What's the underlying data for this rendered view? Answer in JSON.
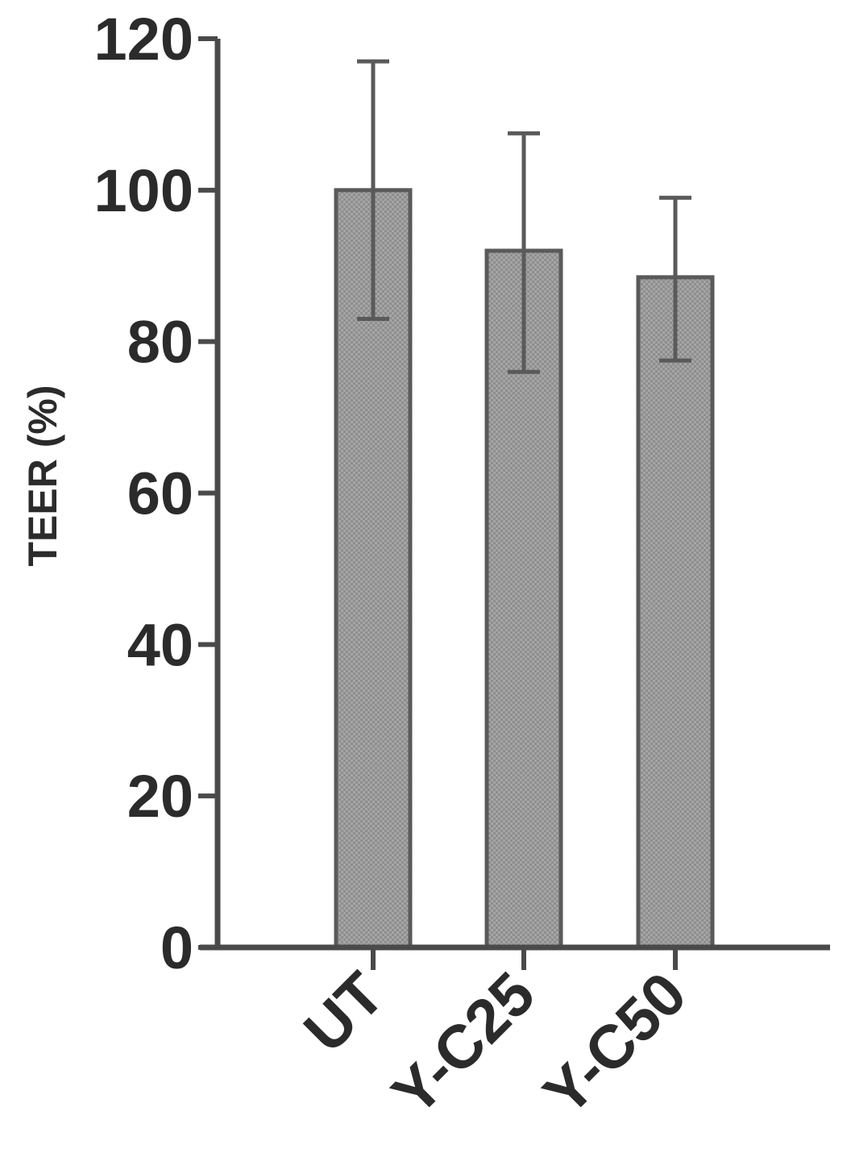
{
  "chart_data": {
    "type": "bar",
    "categories": [
      "UT",
      "Y-C25",
      "Y-C50"
    ],
    "values": [
      100,
      92,
      88.5
    ],
    "error_upper": [
      117,
      107.5,
      99
    ],
    "error_lower": [
      83,
      76,
      77.5
    ],
    "ylabel": "TEER (%)",
    "xlabel": "",
    "ylim": [
      0,
      120
    ],
    "yticks": [
      0,
      20,
      40,
      60,
      80,
      100,
      120
    ],
    "grid": false,
    "bar_color": "#9a9a9a",
    "bar_edge_color": "#5a5a5a",
    "axis_color": "#4a4a4a"
  }
}
